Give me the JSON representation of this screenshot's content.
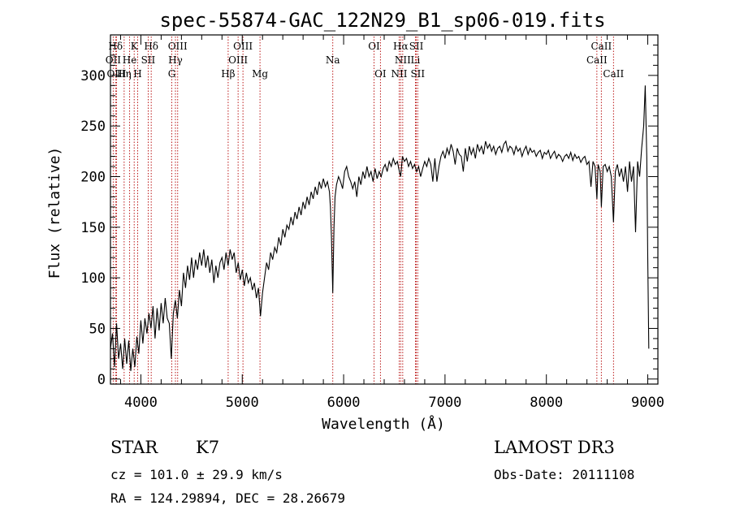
{
  "chart_data": {
    "type": "line",
    "title": "spec-55874-GAC_122N29_B1_sp06-019.fits",
    "xlabel": "Wavelength (Å)",
    "ylabel": "Flux (relative)",
    "xlim": [
      3700,
      9100
    ],
    "ylim": [
      -5,
      340
    ],
    "x_ticks": [
      4000,
      5000,
      6000,
      7000,
      8000,
      9000
    ],
    "y_ticks": [
      0,
      50,
      100,
      150,
      200,
      250,
      300
    ],
    "grid": false,
    "line_color": "#000000",
    "marker_color": "#b40000",
    "spectrum": [
      [
        3700,
        30
      ],
      [
        3720,
        45
      ],
      [
        3740,
        12
      ],
      [
        3760,
        55
      ],
      [
        3780,
        20
      ],
      [
        3800,
        35
      ],
      [
        3820,
        10
      ],
      [
        3840,
        40
      ],
      [
        3860,
        15
      ],
      [
        3880,
        38
      ],
      [
        3900,
        8
      ],
      [
        3920,
        30
      ],
      [
        3940,
        12
      ],
      [
        3960,
        42
      ],
      [
        3980,
        25
      ],
      [
        4000,
        58
      ],
      [
        4020,
        35
      ],
      [
        4040,
        60
      ],
      [
        4060,
        45
      ],
      [
        4080,
        65
      ],
      [
        4100,
        50
      ],
      [
        4120,
        72
      ],
      [
        4140,
        40
      ],
      [
        4160,
        70
      ],
      [
        4180,
        48
      ],
      [
        4200,
        75
      ],
      [
        4220,
        55
      ],
      [
        4240,
        80
      ],
      [
        4260,
        60
      ],
      [
        4280,
        55
      ],
      [
        4300,
        20
      ],
      [
        4320,
        65
      ],
      [
        4340,
        78
      ],
      [
        4360,
        60
      ],
      [
        4380,
        88
      ],
      [
        4400,
        72
      ],
      [
        4420,
        105
      ],
      [
        4440,
        90
      ],
      [
        4460,
        112
      ],
      [
        4480,
        98
      ],
      [
        4500,
        120
      ],
      [
        4520,
        100
      ],
      [
        4540,
        118
      ],
      [
        4560,
        108
      ],
      [
        4580,
        125
      ],
      [
        4600,
        112
      ],
      [
        4620,
        128
      ],
      [
        4640,
        110
      ],
      [
        4660,
        122
      ],
      [
        4680,
        105
      ],
      [
        4700,
        118
      ],
      [
        4720,
        95
      ],
      [
        4740,
        112
      ],
      [
        4760,
        100
      ],
      [
        4780,
        115
      ],
      [
        4800,
        120
      ],
      [
        4820,
        108
      ],
      [
        4840,
        125
      ],
      [
        4860,
        112
      ],
      [
        4880,
        128
      ],
      [
        4900,
        118
      ],
      [
        4920,
        125
      ],
      [
        4940,
        105
      ],
      [
        4960,
        115
      ],
      [
        4980,
        98
      ],
      [
        5000,
        108
      ],
      [
        5020,
        92
      ],
      [
        5040,
        105
      ],
      [
        5060,
        95
      ],
      [
        5080,
        100
      ],
      [
        5100,
        88
      ],
      [
        5120,
        95
      ],
      [
        5140,
        80
      ],
      [
        5160,
        90
      ],
      [
        5180,
        62
      ],
      [
        5200,
        85
      ],
      [
        5220,
        100
      ],
      [
        5240,
        115
      ],
      [
        5260,
        108
      ],
      [
        5280,
        125
      ],
      [
        5300,
        118
      ],
      [
        5320,
        130
      ],
      [
        5340,
        125
      ],
      [
        5360,
        140
      ],
      [
        5380,
        132
      ],
      [
        5400,
        148
      ],
      [
        5420,
        140
      ],
      [
        5440,
        152
      ],
      [
        5460,
        148
      ],
      [
        5480,
        160
      ],
      [
        5500,
        152
      ],
      [
        5520,
        165
      ],
      [
        5540,
        158
      ],
      [
        5560,
        170
      ],
      [
        5580,
        162
      ],
      [
        5600,
        175
      ],
      [
        5620,
        168
      ],
      [
        5640,
        180
      ],
      [
        5660,
        172
      ],
      [
        5680,
        185
      ],
      [
        5700,
        178
      ],
      [
        5720,
        190
      ],
      [
        5740,
        182
      ],
      [
        5760,
        195
      ],
      [
        5780,
        188
      ],
      [
        5800,
        198
      ],
      [
        5820,
        190
      ],
      [
        5840,
        195
      ],
      [
        5860,
        185
      ],
      [
        5870,
        170
      ],
      [
        5880,
        140
      ],
      [
        5893,
        85
      ],
      [
        5905,
        150
      ],
      [
        5915,
        180
      ],
      [
        5930,
        192
      ],
      [
        5950,
        200
      ],
      [
        5970,
        195
      ],
      [
        5990,
        188
      ],
      [
        6010,
        205
      ],
      [
        6030,
        210
      ],
      [
        6050,
        200
      ],
      [
        6070,
        195
      ],
      [
        6090,
        188
      ],
      [
        6110,
        195
      ],
      [
        6130,
        180
      ],
      [
        6150,
        200
      ],
      [
        6170,
        192
      ],
      [
        6190,
        205
      ],
      [
        6210,
        198
      ],
      [
        6230,
        210
      ],
      [
        6250,
        200
      ],
      [
        6270,
        205
      ],
      [
        6290,
        195
      ],
      [
        6310,
        208
      ],
      [
        6330,
        198
      ],
      [
        6350,
        205
      ],
      [
        6370,
        200
      ],
      [
        6390,
        208
      ],
      [
        6410,
        212
      ],
      [
        6430,
        205
      ],
      [
        6450,
        215
      ],
      [
        6470,
        210
      ],
      [
        6490,
        218
      ],
      [
        6510,
        212
      ],
      [
        6530,
        215
      ],
      [
        6550,
        205
      ],
      [
        6563,
        200
      ],
      [
        6580,
        220
      ],
      [
        6600,
        215
      ],
      [
        6620,
        218
      ],
      [
        6640,
        210
      ],
      [
        6660,
        215
      ],
      [
        6680,
        208
      ],
      [
        6700,
        212
      ],
      [
        6720,
        205
      ],
      [
        6740,
        210
      ],
      [
        6760,
        200
      ],
      [
        6780,
        208
      ],
      [
        6800,
        215
      ],
      [
        6820,
        210
      ],
      [
        6840,
        218
      ],
      [
        6860,
        212
      ],
      [
        6880,
        195
      ],
      [
        6900,
        218
      ],
      [
        6920,
        195
      ],
      [
        6940,
        210
      ],
      [
        6960,
        220
      ],
      [
        6980,
        225
      ],
      [
        7000,
        218
      ],
      [
        7020,
        228
      ],
      [
        7040,
        222
      ],
      [
        7060,
        232
      ],
      [
        7080,
        225
      ],
      [
        7100,
        212
      ],
      [
        7120,
        228
      ],
      [
        7140,
        222
      ],
      [
        7160,
        220
      ],
      [
        7180,
        205
      ],
      [
        7200,
        228
      ],
      [
        7220,
        215
      ],
      [
        7240,
        230
      ],
      [
        7260,
        222
      ],
      [
        7280,
        228
      ],
      [
        7300,
        218
      ],
      [
        7320,
        232
      ],
      [
        7340,
        225
      ],
      [
        7360,
        230
      ],
      [
        7380,
        222
      ],
      [
        7400,
        235
      ],
      [
        7420,
        228
      ],
      [
        7440,
        232
      ],
      [
        7460,
        225
      ],
      [
        7480,
        230
      ],
      [
        7500,
        222
      ],
      [
        7520,
        228
      ],
      [
        7540,
        230
      ],
      [
        7560,
        224
      ],
      [
        7580,
        232
      ],
      [
        7600,
        235
      ],
      [
        7620,
        225
      ],
      [
        7640,
        230
      ],
      [
        7660,
        228
      ],
      [
        7680,
        222
      ],
      [
        7700,
        230
      ],
      [
        7720,
        225
      ],
      [
        7740,
        228
      ],
      [
        7760,
        220
      ],
      [
        7780,
        226
      ],
      [
        7800,
        230
      ],
      [
        7820,
        222
      ],
      [
        7840,
        228
      ],
      [
        7860,
        224
      ],
      [
        7880,
        226
      ],
      [
        7900,
        220
      ],
      [
        7920,
        224
      ],
      [
        7940,
        226
      ],
      [
        7960,
        218
      ],
      [
        7980,
        224
      ],
      [
        8000,
        222
      ],
      [
        8020,
        226
      ],
      [
        8040,
        218
      ],
      [
        8060,
        222
      ],
      [
        8080,
        225
      ],
      [
        8100,
        218
      ],
      [
        8120,
        222
      ],
      [
        8140,
        220
      ],
      [
        8160,
        215
      ],
      [
        8180,
        220
      ],
      [
        8200,
        222
      ],
      [
        8220,
        218
      ],
      [
        8240,
        224
      ],
      [
        8260,
        216
      ],
      [
        8280,
        222
      ],
      [
        8300,
        218
      ],
      [
        8320,
        220
      ],
      [
        8340,
        214
      ],
      [
        8360,
        218
      ],
      [
        8380,
        220
      ],
      [
        8400,
        212
      ],
      [
        8420,
        215
      ],
      [
        8440,
        190
      ],
      [
        8460,
        215
      ],
      [
        8480,
        210
      ],
      [
        8498,
        178
      ],
      [
        8510,
        212
      ],
      [
        8530,
        205
      ],
      [
        8542,
        170
      ],
      [
        8560,
        210
      ],
      [
        8580,
        212
      ],
      [
        8600,
        205
      ],
      [
        8620,
        210
      ],
      [
        8640,
        200
      ],
      [
        8662,
        155
      ],
      [
        8680,
        205
      ],
      [
        8700,
        212
      ],
      [
        8720,
        200
      ],
      [
        8740,
        208
      ],
      [
        8760,
        195
      ],
      [
        8780,
        210
      ],
      [
        8800,
        185
      ],
      [
        8820,
        215
      ],
      [
        8840,
        195
      ],
      [
        8860,
        210
      ],
      [
        8880,
        145
      ],
      [
        8900,
        215
      ],
      [
        8920,
        200
      ],
      [
        8940,
        228
      ],
      [
        8960,
        250
      ],
      [
        8975,
        290
      ],
      [
        8990,
        220
      ],
      [
        9000,
        120
      ],
      [
        9010,
        30
      ]
    ],
    "lines": [
      {
        "name": "Hδ",
        "x": 3750,
        "row": 0
      },
      {
        "name": "K",
        "x": 3934,
        "row": 0
      },
      {
        "name": "Hδ",
        "x": 4102,
        "row": 0
      },
      {
        "name": "OIII",
        "x": 4363,
        "row": 0
      },
      {
        "name": "OIII",
        "x": 5007,
        "row": 0
      },
      {
        "name": "OI",
        "x": 6300,
        "row": 0
      },
      {
        "name": "Hα",
        "x": 6563,
        "row": 0
      },
      {
        "name": "SII",
        "x": 6717,
        "row": 0
      },
      {
        "name": "CaII",
        "x": 8542,
        "row": 0
      },
      {
        "name": "OII",
        "x": 3727,
        "row": 1
      },
      {
        "name": "He",
        "x": 3889,
        "row": 1
      },
      {
        "name": "SII",
        "x": 4072,
        "row": 1
      },
      {
        "name": "Hγ",
        "x": 4341,
        "row": 1
      },
      {
        "name": "OIII",
        "x": 4959,
        "row": 1
      },
      {
        "name": "Na",
        "x": 5893,
        "row": 1
      },
      {
        "name": "NII",
        "x": 6583,
        "row": 1
      },
      {
        "name": "Li",
        "x": 6708,
        "row": 1
      },
      {
        "name": "CaII",
        "x": 8498,
        "row": 1
      },
      {
        "name": "OIII",
        "x": 3760,
        "row": 2
      },
      {
        "name": "Hη",
        "x": 3835,
        "row": 2
      },
      {
        "name": "H",
        "x": 3968,
        "row": 2
      },
      {
        "name": "G",
        "x": 4305,
        "row": 2
      },
      {
        "name": "Hβ",
        "x": 4861,
        "row": 2
      },
      {
        "name": "Mg",
        "x": 5175,
        "row": 2
      },
      {
        "name": "OI",
        "x": 6363,
        "row": 2
      },
      {
        "name": "NII",
        "x": 6548,
        "row": 2
      },
      {
        "name": "SII",
        "x": 6731,
        "row": 2
      },
      {
        "name": "CaII",
        "x": 8662,
        "row": 2
      }
    ]
  },
  "info": {
    "class_type": "STAR",
    "subclass": "K7",
    "survey": "LAMOST DR3",
    "redshift": "cz = 101.0 ± 29.9 km/s",
    "obs_date": "Obs-Date: 20111108",
    "coords": "RA = 124.29894, DEC =  28.26679"
  }
}
